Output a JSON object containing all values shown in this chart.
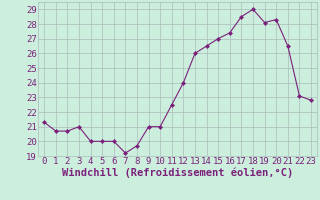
{
  "x": [
    0,
    1,
    2,
    3,
    4,
    5,
    6,
    7,
    8,
    9,
    10,
    11,
    12,
    13,
    14,
    15,
    16,
    17,
    18,
    19,
    20,
    21,
    22,
    23
  ],
  "y": [
    21.3,
    20.7,
    20.7,
    21.0,
    20.0,
    20.0,
    20.0,
    19.2,
    19.7,
    21.0,
    21.0,
    22.5,
    24.0,
    26.0,
    26.5,
    27.0,
    27.4,
    28.5,
    29.0,
    28.1,
    28.3,
    26.5,
    23.1,
    22.8
  ],
  "line_color": "#7B217B",
  "marker": "D",
  "marker_size": 2.0,
  "bg_color": "#cceedd",
  "grid_color": "#aabbbb",
  "xlabel": "Windchill (Refroidissement éolien,°C)",
  "ylim": [
    19,
    29.5
  ],
  "yticks": [
    19,
    20,
    21,
    22,
    23,
    24,
    25,
    26,
    27,
    28,
    29
  ],
  "xticks": [
    0,
    1,
    2,
    3,
    4,
    5,
    6,
    7,
    8,
    9,
    10,
    11,
    12,
    13,
    14,
    15,
    16,
    17,
    18,
    19,
    20,
    21,
    22,
    23
  ],
  "tick_color": "#7B217B",
  "font_size": 6.5,
  "xlabel_font_size": 7.5
}
